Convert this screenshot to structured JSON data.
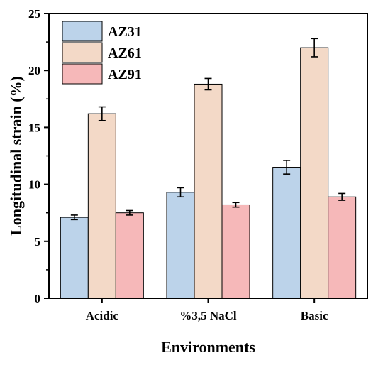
{
  "chart_data": {
    "type": "bar",
    "title": "",
    "xlabel": "Environments",
    "ylabel": "Longitudinal strain (%)",
    "ylim": [
      0,
      25
    ],
    "yticks": [
      "0",
      "5",
      "10",
      "15",
      "20",
      "25"
    ],
    "categories": [
      "Acidic",
      "%3,5 NaCl",
      "Basic"
    ],
    "series": [
      {
        "name": "AZ31",
        "values": [
          7.1,
          9.3,
          11.5
        ],
        "errors": [
          0.2,
          0.4,
          0.6
        ],
        "color": "#bcd3ea"
      },
      {
        "name": "AZ61",
        "values": [
          16.2,
          18.8,
          22.0
        ],
        "errors": [
          0.6,
          0.5,
          0.8
        ],
        "color": "#f3d9c7"
      },
      {
        "name": "AZ91",
        "values": [
          7.5,
          8.2,
          8.9
        ],
        "errors": [
          0.2,
          0.2,
          0.3
        ],
        "color": "#f6b8b9"
      }
    ],
    "legend_position": "top-left",
    "grid": false
  }
}
